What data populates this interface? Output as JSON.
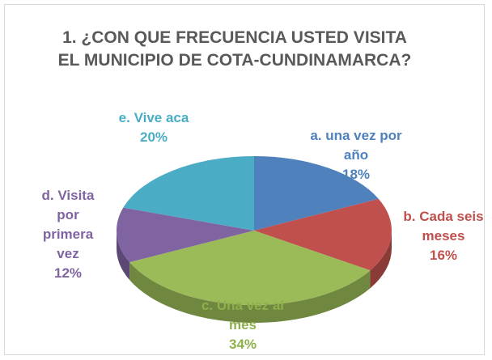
{
  "chart_data": {
    "type": "pie",
    "title": "1. ¿CON QUE FRECUENCIA USTED VISITA EL MUNICIPIO DE COTA-CUNDINAMARCA?",
    "categories": [
      "a. una vez por año",
      "b. Cada seis meses",
      "c. Una vez al mes",
      "d. Visita por primera vez",
      "e. Vive aca"
    ],
    "values": [
      18,
      16,
      34,
      12,
      20
    ],
    "value_labels": [
      "18%",
      "16%",
      "34%",
      "12%",
      "20%"
    ],
    "colors": [
      "#4f81bd",
      "#c0504d",
      "#9bbb59",
      "#8064a2",
      "#4bacc6"
    ],
    "style": "3d"
  }
}
